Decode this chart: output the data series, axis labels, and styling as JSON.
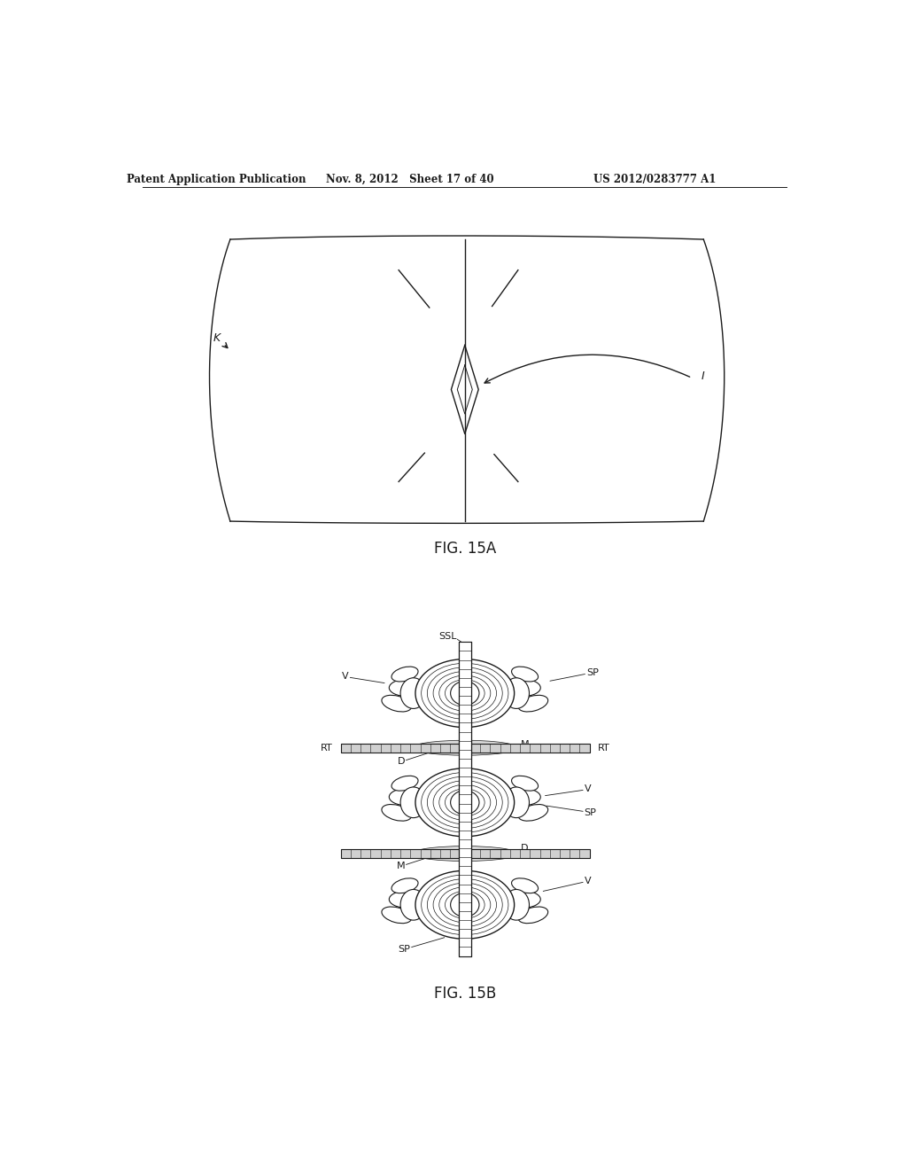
{
  "bg_color": "#ffffff",
  "line_color": "#1a1a1a",
  "header_left": "Patent Application Publication",
  "header_mid": "Nov. 8, 2012   Sheet 17 of 40",
  "header_right": "US 2012/0283777 A1",
  "fig15a_label": "FIG. 15A",
  "fig15b_label": "FIG. 15B",
  "lbl_K": "K",
  "lbl_I": "I",
  "lbl_SSL": "SSL",
  "lbl_SP": "SP",
  "lbl_V": "V",
  "lbl_RT": "RT",
  "lbl_D": "D",
  "lbl_M": "M"
}
